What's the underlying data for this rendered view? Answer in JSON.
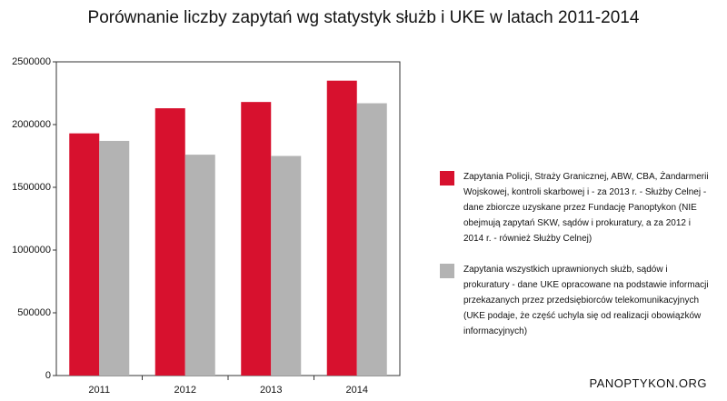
{
  "chart_data": {
    "type": "bar",
    "title": "Porównanie liczby zapytań wg statystyk służb i UKE w latach 2011-2014",
    "categories": [
      "2011",
      "2012",
      "2013",
      "2014"
    ],
    "series": [
      {
        "name": "Zapytania Policji, Straży Granicznej, ABW, CBA, Żandarmerii Wojskowej, kontroli skarbowej i - za 2013 r. - Służby Celnej - dane zbiorcze uzyskane przez Fundację Panoptykon (NIE obejmują zapytań SKW, sądów i prokuratury, a za 2012 i 2014 r. - również Służby Celnej)",
        "color": "#d7112e",
        "values": [
          1930000,
          2130000,
          2180000,
          2350000
        ]
      },
      {
        "name": "Zapytania wszystkich uprawnionych służb, sądów i prokuratury - dane UKE opracowane na podstawie informacji przekazanych przez przedsiębiorców telekomunikacyjnych (UKE podaje, że część uchyla się od realizacji obowiązków informacyjnych)",
        "color": "#b3b3b3",
        "values": [
          1870000,
          1760000,
          1750000,
          2170000
        ]
      }
    ],
    "ylim": [
      0,
      2500000
    ],
    "yticks": [
      0,
      500000,
      1000000,
      1500000,
      2000000,
      2500000
    ],
    "grid": false,
    "source": "PANOPTYKON.ORG"
  }
}
